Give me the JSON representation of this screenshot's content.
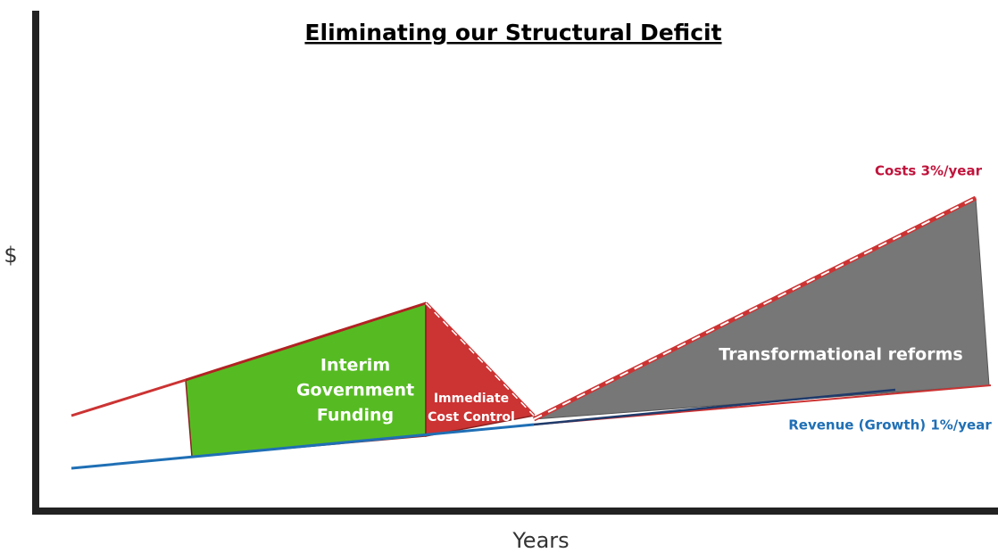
{
  "title": "Eliminating our Structural Deficit",
  "y_axis_label": "$",
  "x_axis_label": "Years",
  "regions": [
    {
      "lines": [
        "Interim",
        "Government",
        "Funding"
      ]
    },
    {
      "lines": [
        "Immediate",
        "Cost Control"
      ]
    },
    {
      "lines": [
        "Transformational reforms"
      ]
    }
  ],
  "line_labels": {
    "costs": "Costs 3%/year",
    "revenue": "Revenue (Growth) 1%/year"
  }
}
